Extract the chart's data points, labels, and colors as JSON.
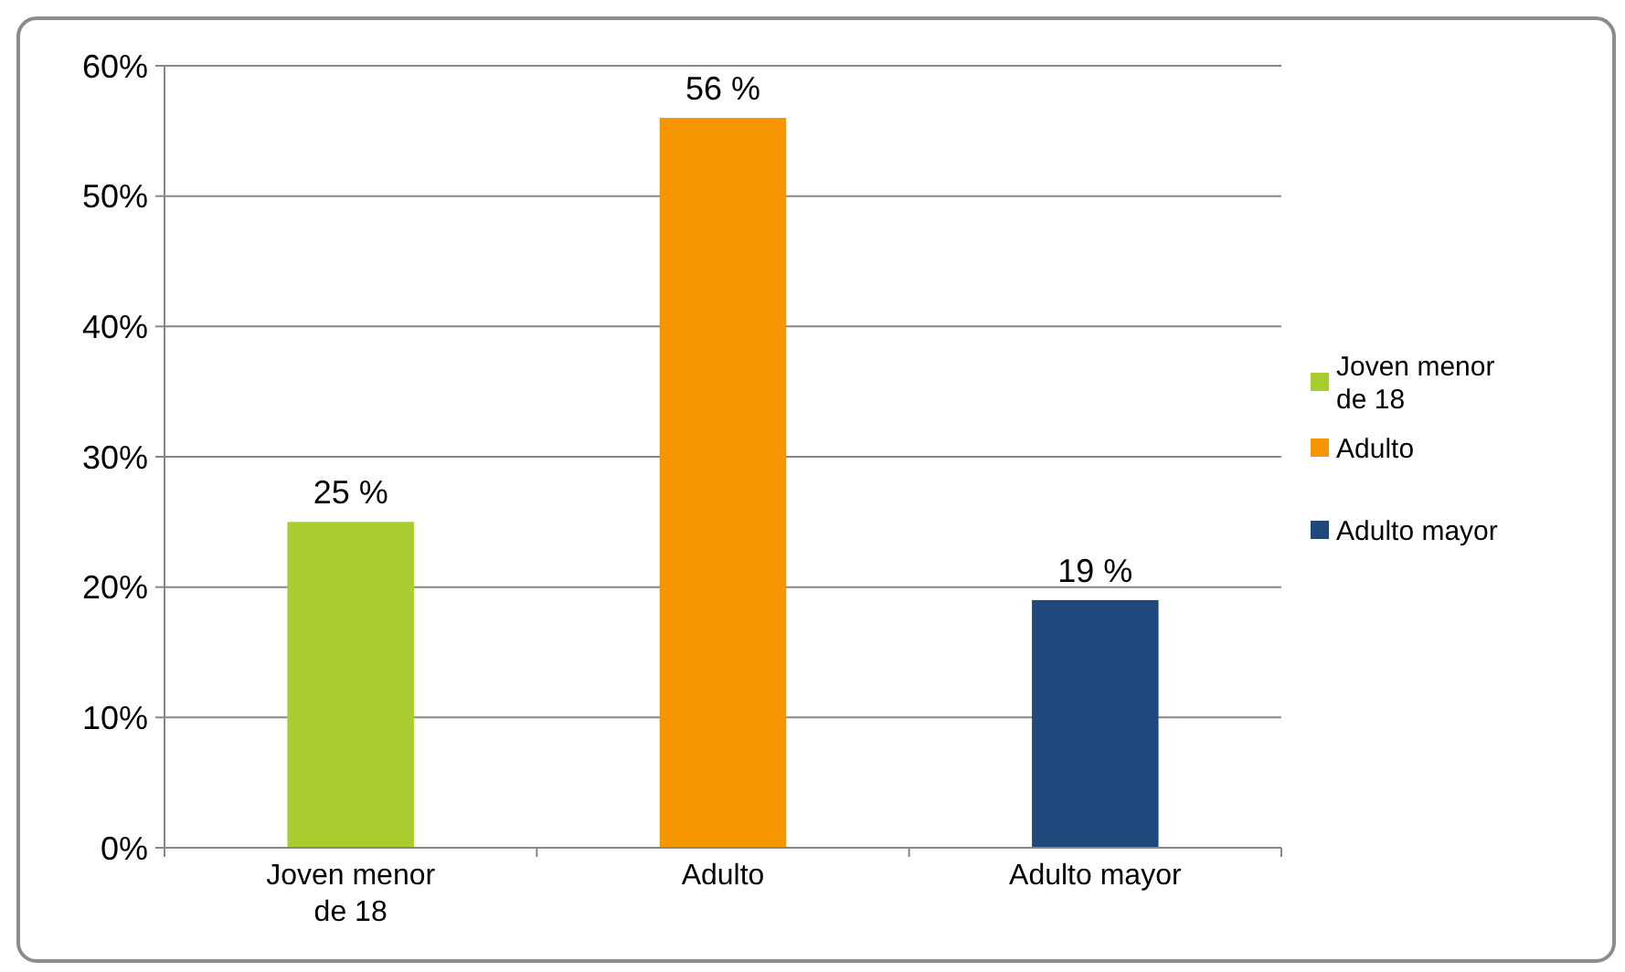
{
  "chart_data": {
    "type": "bar",
    "categories": [
      "Joven menor de 18",
      "Adulto",
      "Adulto mayor"
    ],
    "series": [
      {
        "name": "Joven menor de 18",
        "color": "#a9cc2f",
        "values": [
          25,
          null,
          null
        ],
        "value_labels": [
          "25 %",
          null,
          null
        ]
      },
      {
        "name": "Adulto",
        "color": "#f59500",
        "values": [
          null,
          56,
          null
        ],
        "value_labels": [
          null,
          "56 %",
          null
        ]
      },
      {
        "name": "Adulto mayor",
        "color": "#1f497d",
        "values": [
          null,
          null,
          19
        ],
        "value_labels": [
          null,
          null,
          "19 %"
        ]
      }
    ],
    "stacked": true,
    "ylim": [
      0,
      60
    ],
    "yticks": [
      {
        "value": 0,
        "label": "0%"
      },
      {
        "value": 10,
        "label": "10%"
      },
      {
        "value": 20,
        "label": "20%"
      },
      {
        "value": 30,
        "label": "30%"
      },
      {
        "value": 40,
        "label": "40%"
      },
      {
        "value": 50,
        "label": "50%"
      },
      {
        "value": 60,
        "label": "60%"
      }
    ],
    "grid": "y",
    "legend": "right"
  }
}
